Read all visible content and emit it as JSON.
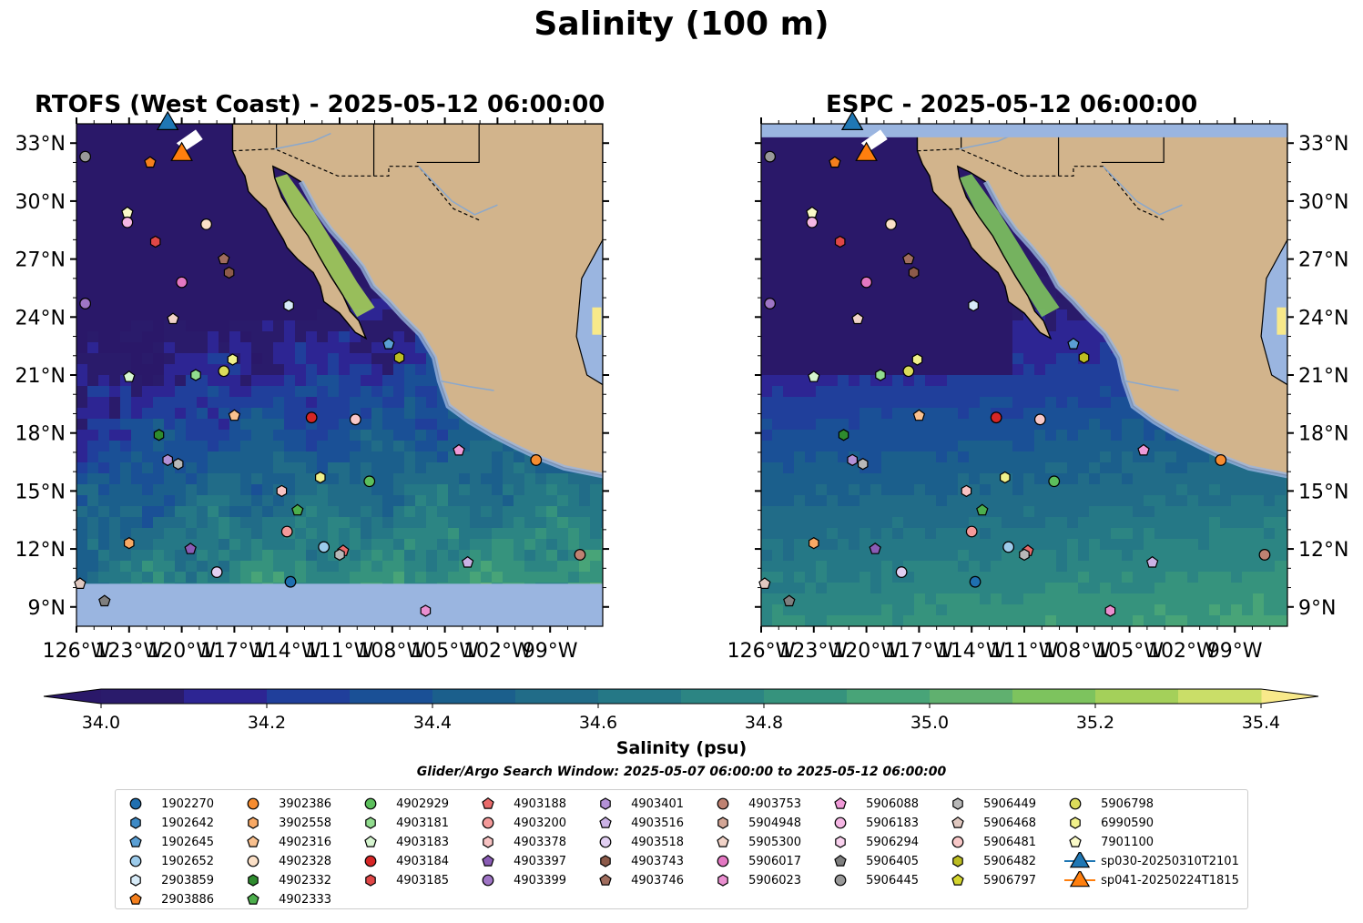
{
  "title": "Salinity (100 m)",
  "panels": [
    {
      "title": "RTOFS (West Coast) - 2025-05-12 06:00:00"
    },
    {
      "title": "ESPC - 2025-05-12 06:00:00"
    }
  ],
  "colorbar": {
    "label": "Salinity (psu)",
    "ticks": [
      "34.0",
      "34.2",
      "34.4",
      "34.6",
      "34.8",
      "35.0",
      "35.2",
      "35.4"
    ],
    "min": 34.0,
    "max": 35.4,
    "step": 0.1,
    "colors": [
      "#2a1b6b",
      "#2d2593",
      "#203f9b",
      "#1a5096",
      "#1b5f8c",
      "#216c88",
      "#257886",
      "#2c8583",
      "#36937d",
      "#48a478",
      "#60b06f",
      "#7dc35e",
      "#a4d05a",
      "#cade68"
    ],
    "under_color": "#2a1869",
    "over_color": "#f8e98a"
  },
  "search_window": "Glider/Argo Search Window: 2025-05-07 06:00:00 to 2025-05-12 06:00:00",
  "map_colors": {
    "land": "#d2b48c",
    "shelf": "#9ab5e0",
    "river": "#8ba8cc"
  },
  "chart_data": {
    "type": "map",
    "projection": "PlateCarree",
    "lon_range": [
      -126,
      -96
    ],
    "lat_range": [
      8,
      34
    ],
    "x_ticks": [
      "126°W",
      "123°W",
      "120°W",
      "117°W",
      "114°W",
      "111°W",
      "108°W",
      "105°W",
      "102°W",
      "99°W"
    ],
    "y_ticks": [
      "9°N",
      "12°N",
      "15°N",
      "18°N",
      "21°N",
      "24°N",
      "27°N",
      "30°N",
      "33°N"
    ],
    "legend": [
      {
        "id": "1902270",
        "shape": "o",
        "color": "#1f6fb0"
      },
      {
        "id": "1902642",
        "shape": "h",
        "color": "#3e8ac6"
      },
      {
        "id": "1902645",
        "shape": "p",
        "color": "#5a9fd4"
      },
      {
        "id": "1902652",
        "shape": "o",
        "color": "#9ccbeb"
      },
      {
        "id": "2903859",
        "shape": "h",
        "color": "#d7ebf8"
      },
      {
        "id": "2903886",
        "shape": "p",
        "color": "#f47f1d"
      },
      {
        "id": "3902386",
        "shape": "o",
        "color": "#f68c30"
      },
      {
        "id": "3902558",
        "shape": "h",
        "color": "#f8a965"
      },
      {
        "id": "4902316",
        "shape": "p",
        "color": "#f9c08e"
      },
      {
        "id": "4902328",
        "shape": "o",
        "color": "#fbe0c7"
      },
      {
        "id": "4902332",
        "shape": "h",
        "color": "#2e8b2e"
      },
      {
        "id": "4902333",
        "shape": "p",
        "color": "#4cae4c"
      },
      {
        "id": "4902929",
        "shape": "o",
        "color": "#5cbf5c"
      },
      {
        "id": "4903181",
        "shape": "h",
        "color": "#91dc8e"
      },
      {
        "id": "4903183",
        "shape": "p",
        "color": "#d6f5d0"
      },
      {
        "id": "4903184",
        "shape": "o",
        "color": "#d62626"
      },
      {
        "id": "4903185",
        "shape": "h",
        "color": "#e04747"
      },
      {
        "id": "4903188",
        "shape": "p",
        "color": "#e96b6b"
      },
      {
        "id": "4903200",
        "shape": "o",
        "color": "#f49a9a"
      },
      {
        "id": "4903378",
        "shape": "h",
        "color": "#f8c3c3"
      },
      {
        "id": "4903397",
        "shape": "p",
        "color": "#8a5cb5"
      },
      {
        "id": "4903399",
        "shape": "o",
        "color": "#9f75c5"
      },
      {
        "id": "4903401",
        "shape": "h",
        "color": "#b391d6"
      },
      {
        "id": "4903516",
        "shape": "p",
        "color": "#cbb2e6"
      },
      {
        "id": "4903518",
        "shape": "o",
        "color": "#e1cff2"
      },
      {
        "id": "4903743",
        "shape": "h",
        "color": "#8c5a4a"
      },
      {
        "id": "4903746",
        "shape": "p",
        "color": "#a06d5e"
      },
      {
        "id": "4903753",
        "shape": "o",
        "color": "#bf8272"
      },
      {
        "id": "5904948",
        "shape": "h",
        "color": "#d4a696"
      },
      {
        "id": "5905300",
        "shape": "p",
        "color": "#f1d3c8"
      },
      {
        "id": "5906017",
        "shape": "o",
        "color": "#e377c2"
      },
      {
        "id": "5906023",
        "shape": "h",
        "color": "#ea8fd0"
      },
      {
        "id": "5906088",
        "shape": "p",
        "color": "#f09ad8"
      },
      {
        "id": "5906183",
        "shape": "o",
        "color": "#f5b6e4"
      },
      {
        "id": "5906294",
        "shape": "h",
        "color": "#f9d1ee"
      },
      {
        "id": "5906405",
        "shape": "p",
        "color": "#7f7f7f"
      },
      {
        "id": "5906445",
        "shape": "o",
        "color": "#999999"
      },
      {
        "id": "5906449",
        "shape": "h",
        "color": "#b8b8b8"
      },
      {
        "id": "5906468",
        "shape": "p",
        "color": "#e0c8c0"
      },
      {
        "id": "5906481",
        "shape": "o",
        "color": "#f8c8c8"
      },
      {
        "id": "5906482",
        "shape": "h",
        "color": "#bcbd22"
      },
      {
        "id": "5906797",
        "shape": "p",
        "color": "#d4d52e"
      },
      {
        "id": "5906798",
        "shape": "o",
        "color": "#dbdb5a"
      },
      {
        "id": "6990590",
        "shape": "h",
        "color": "#f0f08a"
      },
      {
        "id": "7901100",
        "shape": "p",
        "color": "#fafac8"
      },
      {
        "id": "sp030-20250310T2101",
        "shape": "^",
        "color": "#1f77b4"
      },
      {
        "id": "sp041-20250224T1815",
        "shape": "^",
        "color": "#ff7f0e"
      }
    ],
    "points": [
      {
        "id": "5906445",
        "lon": -125.5,
        "lat": 32.3
      },
      {
        "id": "2903886",
        "lon": -121.8,
        "lat": 32.0
      },
      {
        "id": "sp030-20250310T2101",
        "lon": -120.8,
        "lat": 34.1
      },
      {
        "id": "sp041-20250224T1815",
        "lon": -120.0,
        "lat": 32.5
      },
      {
        "id": "7901100",
        "lon": -123.1,
        "lat": 29.4
      },
      {
        "id": "5906183",
        "lon": -123.1,
        "lat": 28.9
      },
      {
        "id": "4903185",
        "lon": -121.5,
        "lat": 27.9
      },
      {
        "id": "4902328",
        "lon": -118.6,
        "lat": 28.8
      },
      {
        "id": "4903746",
        "lon": -117.6,
        "lat": 27.0
      },
      {
        "id": "4903743",
        "lon": -117.3,
        "lat": 26.3
      },
      {
        "id": "5906017",
        "lon": -120.0,
        "lat": 25.8
      },
      {
        "id": "4903399",
        "lon": -125.5,
        "lat": 24.7
      },
      {
        "id": "5905300",
        "lon": -120.5,
        "lat": 23.9
      },
      {
        "id": "2903859",
        "lon": -113.9,
        "lat": 24.6
      },
      {
        "id": "1902645",
        "lon": -108.2,
        "lat": 22.6
      },
      {
        "id": "5906482",
        "lon": -107.6,
        "lat": 21.9
      },
      {
        "id": "6990590",
        "lon": -117.1,
        "lat": 21.8
      },
      {
        "id": "5906798",
        "lon": -117.6,
        "lat": 21.2
      },
      {
        "id": "4903181",
        "lon": -119.2,
        "lat": 21.0
      },
      {
        "id": "4903183",
        "lon": -123.0,
        "lat": 20.9
      },
      {
        "id": "4902316",
        "lon": -117.0,
        "lat": 18.9
      },
      {
        "id": "4903184",
        "lon": -112.6,
        "lat": 18.8
      },
      {
        "id": "5906481",
        "lon": -110.1,
        "lat": 18.7
      },
      {
        "id": "4902332",
        "lon": -121.3,
        "lat": 17.9
      },
      {
        "id": "5906088",
        "lon": -104.2,
        "lat": 17.1
      },
      {
        "id": "3902386",
        "lon": -99.8,
        "lat": 16.6
      },
      {
        "id": "4903401",
        "lon": -120.8,
        "lat": 16.6
      },
      {
        "id": "5906449",
        "lon": -120.2,
        "lat": 16.4
      },
      {
        "id": "6990590",
        "lon": -112.1,
        "lat": 15.7
      },
      {
        "id": "4902929",
        "lon": -109.3,
        "lat": 15.5
      },
      {
        "id": "4903378",
        "lon": -114.3,
        "lat": 15.0
      },
      {
        "id": "4902333",
        "lon": -113.4,
        "lat": 14.0
      },
      {
        "id": "4903200",
        "lon": -114.0,
        "lat": 12.9
      },
      {
        "id": "3902558",
        "lon": -123.0,
        "lat": 12.3
      },
      {
        "id": "4903397",
        "lon": -119.5,
        "lat": 12.0
      },
      {
        "id": "1902652",
        "lon": -111.9,
        "lat": 12.1
      },
      {
        "id": "4903188",
        "lon": -110.8,
        "lat": 11.9
      },
      {
        "id": "5906449",
        "lon": -111.0,
        "lat": 11.7
      },
      {
        "id": "4903516",
        "lon": -103.7,
        "lat": 11.3
      },
      {
        "id": "4903753",
        "lon": -97.3,
        "lat": 11.7
      },
      {
        "id": "4903518",
        "lon": -118.0,
        "lat": 10.8
      },
      {
        "id": "1902270",
        "lon": -113.8,
        "lat": 10.3
      },
      {
        "id": "5906468",
        "lon": -125.8,
        "lat": 10.2
      },
      {
        "id": "5906405",
        "lon": -124.4,
        "lat": 9.3
      },
      {
        "id": "5906023",
        "lon": -106.1,
        "lat": 8.8
      }
    ]
  }
}
